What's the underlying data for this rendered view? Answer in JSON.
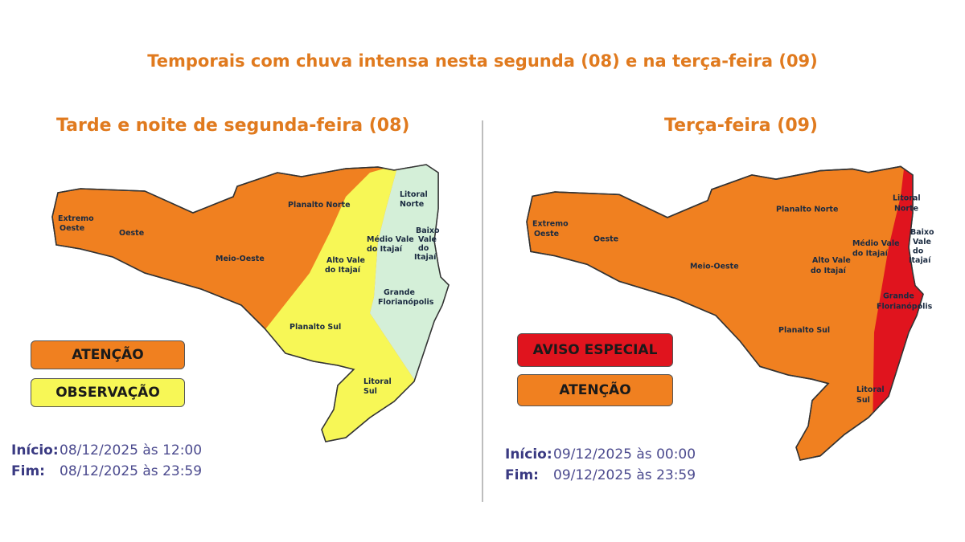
{
  "title": "Temporais com chuva intensa nesta segunda (08) e na terça-feira (09)",
  "colors": {
    "atencao": "#f08020",
    "observacao": "#f7f756",
    "aviso_especial": "#e0141e",
    "normal": "#d4efd8",
    "title": "#e07a1e"
  },
  "left_panel": {
    "subtitle": "Tarde e noite de segunda-feira (08)",
    "legend": [
      {
        "label": "ATENÇÃO",
        "color": "#f08020"
      },
      {
        "label": "OBSERVAÇÃO",
        "color": "#f7f756"
      }
    ],
    "start_label": "Início:",
    "start_value": "08/12/2025 às 12:00",
    "end_label": "Fim:",
    "end_value": "08/12/2025 às 23:59"
  },
  "right_panel": {
    "subtitle": "Terça-feira (09)",
    "legend": [
      {
        "label": "AVISO ESPECIAL",
        "color": "#e0141e"
      },
      {
        "label": "ATENÇÃO",
        "color": "#f08020"
      }
    ],
    "start_label": "Início:",
    "start_value": "09/12/2025 às 00:00",
    "end_label": "Fim:",
    "end_value": "09/12/2025 às 23:59"
  },
  "regions": [
    "Extremo",
    "Oeste",
    "Oeste",
    "Meio-Oeste",
    "Planalto Norte",
    "Alto Vale",
    "do Itajaí",
    "Médio Vale",
    "do Itajaí",
    "Litoral",
    "Norte",
    "Baixo",
    "Vale",
    "do",
    "Itajaí",
    "Grande",
    "Florianópolis",
    "Planalto Sul",
    "Litoral",
    "Sul"
  ]
}
